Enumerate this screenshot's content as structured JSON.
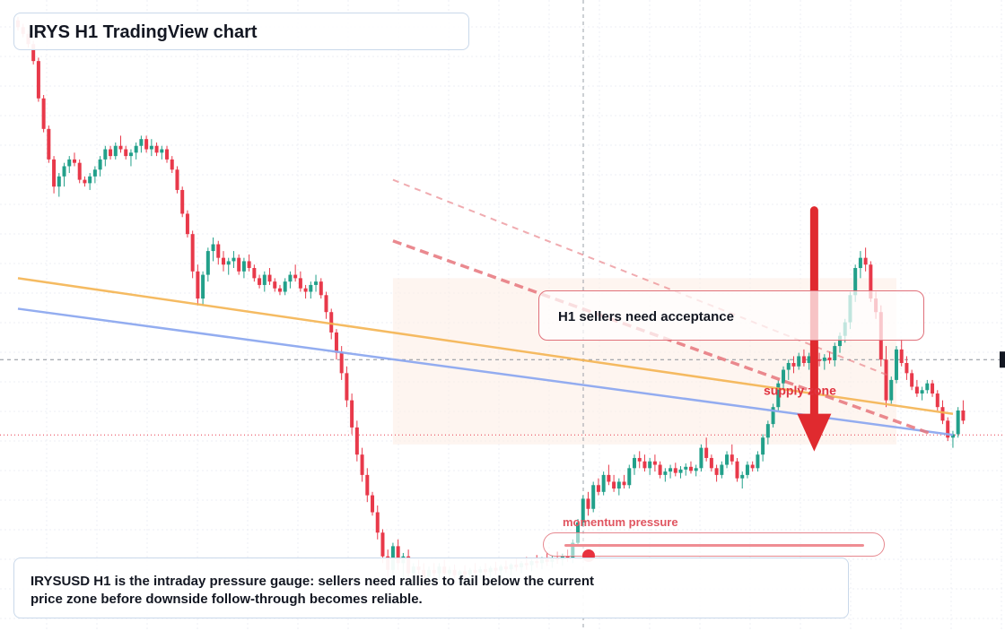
{
  "header": {
    "title": "IRYS H1 TradingView chart"
  },
  "callout": {
    "text": "H1 sellers need acceptance"
  },
  "zone": {
    "label": "supply zone"
  },
  "gauge": {
    "label": "momentum pressure",
    "level": 0.08
  },
  "summary": {
    "text": "IRYSUSD H1 is the intraday pressure gauge: sellers need rallies to fail below the current price zone before downside follow-through becomes reliable."
  },
  "colors": {
    "up": "#22a08a",
    "down": "#e8394a",
    "supply_zone_fill": "#fdece4",
    "orange_trendline": "#f5b452",
    "blue_trendline": "#8ea9f0",
    "red_dashed": "#e7757c",
    "arrow": "#e02a2f",
    "panel_border": "#c9d8ea"
  },
  "chart_data": {
    "type": "candlestick",
    "title": "IRYS H1 TradingView chart",
    "xlabel": "",
    "ylabel": "",
    "grid": true,
    "price_range": [
      0.1,
      1.0
    ],
    "candles": [
      [
        1.0,
        1.005,
        0.985,
        0.99
      ],
      [
        0.99,
        0.995,
        0.975,
        0.98
      ],
      [
        0.98,
        0.985,
        0.96,
        0.965
      ],
      [
        0.965,
        0.97,
        0.935,
        0.94
      ],
      [
        0.94,
        0.945,
        0.88,
        0.885
      ],
      [
        0.885,
        0.89,
        0.835,
        0.84
      ],
      [
        0.84,
        0.845,
        0.79,
        0.795
      ],
      [
        0.795,
        0.8,
        0.745,
        0.755
      ],
      [
        0.755,
        0.775,
        0.74,
        0.77
      ],
      [
        0.77,
        0.79,
        0.755,
        0.785
      ],
      [
        0.785,
        0.8,
        0.775,
        0.795
      ],
      [
        0.795,
        0.805,
        0.785,
        0.79
      ],
      [
        0.79,
        0.795,
        0.76,
        0.765
      ],
      [
        0.765,
        0.77,
        0.755,
        0.76
      ],
      [
        0.76,
        0.775,
        0.75,
        0.77
      ],
      [
        0.77,
        0.785,
        0.76,
        0.78
      ],
      [
        0.78,
        0.8,
        0.77,
        0.795
      ],
      [
        0.795,
        0.815,
        0.785,
        0.81
      ],
      [
        0.81,
        0.815,
        0.795,
        0.8
      ],
      [
        0.8,
        0.82,
        0.795,
        0.815
      ],
      [
        0.815,
        0.83,
        0.805,
        0.81
      ],
      [
        0.81,
        0.815,
        0.795,
        0.8
      ],
      [
        0.8,
        0.81,
        0.785,
        0.805
      ],
      [
        0.805,
        0.82,
        0.795,
        0.815
      ],
      [
        0.815,
        0.83,
        0.805,
        0.825
      ],
      [
        0.825,
        0.83,
        0.805,
        0.81
      ],
      [
        0.81,
        0.825,
        0.8,
        0.815
      ],
      [
        0.815,
        0.82,
        0.8,
        0.805
      ],
      [
        0.805,
        0.815,
        0.795,
        0.81
      ],
      [
        0.81,
        0.815,
        0.79,
        0.795
      ],
      [
        0.795,
        0.8,
        0.775,
        0.78
      ],
      [
        0.78,
        0.785,
        0.745,
        0.75
      ],
      [
        0.75,
        0.755,
        0.71,
        0.715
      ],
      [
        0.715,
        0.72,
        0.68,
        0.685
      ],
      [
        0.685,
        0.69,
        0.62,
        0.63
      ],
      [
        0.63,
        0.64,
        0.58,
        0.59
      ],
      [
        0.59,
        0.63,
        0.58,
        0.625
      ],
      [
        0.625,
        0.665,
        0.615,
        0.66
      ],
      [
        0.66,
        0.68,
        0.645,
        0.67
      ],
      [
        0.67,
        0.675,
        0.64,
        0.65
      ],
      [
        0.65,
        0.66,
        0.63,
        0.64
      ],
      [
        0.64,
        0.65,
        0.625,
        0.645
      ],
      [
        0.645,
        0.66,
        0.635,
        0.65
      ],
      [
        0.65,
        0.655,
        0.625,
        0.63
      ],
      [
        0.63,
        0.65,
        0.62,
        0.645
      ],
      [
        0.645,
        0.655,
        0.63,
        0.635
      ],
      [
        0.635,
        0.64,
        0.615,
        0.62
      ],
      [
        0.62,
        0.625,
        0.605,
        0.61
      ],
      [
        0.61,
        0.63,
        0.6,
        0.625
      ],
      [
        0.625,
        0.635,
        0.61,
        0.615
      ],
      [
        0.615,
        0.62,
        0.6,
        0.605
      ],
      [
        0.605,
        0.61,
        0.595,
        0.6
      ],
      [
        0.6,
        0.62,
        0.595,
        0.615
      ],
      [
        0.615,
        0.63,
        0.605,
        0.625
      ],
      [
        0.625,
        0.64,
        0.615,
        0.62
      ],
      [
        0.62,
        0.63,
        0.6,
        0.605
      ],
      [
        0.605,
        0.61,
        0.59,
        0.6
      ],
      [
        0.6,
        0.615,
        0.59,
        0.61
      ],
      [
        0.61,
        0.625,
        0.6,
        0.615
      ],
      [
        0.615,
        0.62,
        0.59,
        0.595
      ],
      [
        0.595,
        0.6,
        0.56,
        0.57
      ],
      [
        0.57,
        0.575,
        0.53,
        0.54
      ],
      [
        0.54,
        0.545,
        0.5,
        0.51
      ],
      [
        0.51,
        0.52,
        0.47,
        0.48
      ],
      [
        0.48,
        0.49,
        0.43,
        0.44
      ],
      [
        0.44,
        0.45,
        0.39,
        0.4
      ],
      [
        0.4,
        0.41,
        0.35,
        0.36
      ],
      [
        0.36,
        0.37,
        0.32,
        0.33
      ],
      [
        0.33,
        0.34,
        0.29,
        0.3
      ],
      [
        0.3,
        0.305,
        0.27,
        0.275
      ],
      [
        0.275,
        0.285,
        0.235,
        0.245
      ],
      [
        0.245,
        0.25,
        0.2,
        0.21
      ],
      [
        0.21,
        0.22,
        0.18,
        0.19
      ],
      [
        0.19,
        0.23,
        0.18,
        0.225
      ],
      [
        0.225,
        0.235,
        0.19,
        0.2
      ],
      [
        0.2,
        0.215,
        0.175,
        0.21
      ],
      [
        0.21,
        0.22,
        0.18,
        0.185
      ],
      [
        0.185,
        0.2,
        0.17,
        0.195
      ],
      [
        0.195,
        0.205,
        0.18,
        0.19
      ],
      [
        0.19,
        0.2,
        0.175,
        0.18
      ],
      [
        0.18,
        0.195,
        0.17,
        0.19
      ],
      [
        0.19,
        0.2,
        0.18,
        0.185
      ],
      [
        0.185,
        0.2,
        0.175,
        0.195
      ],
      [
        0.195,
        0.205,
        0.18,
        0.185
      ],
      [
        0.185,
        0.195,
        0.175,
        0.19
      ],
      [
        0.19,
        0.198,
        0.178,
        0.182
      ],
      [
        0.182,
        0.19,
        0.17,
        0.188
      ],
      [
        0.188,
        0.197,
        0.177,
        0.183
      ],
      [
        0.183,
        0.193,
        0.172,
        0.19
      ],
      [
        0.19,
        0.2,
        0.18,
        0.186
      ],
      [
        0.186,
        0.195,
        0.176,
        0.191
      ],
      [
        0.191,
        0.2,
        0.182,
        0.187
      ],
      [
        0.187,
        0.196,
        0.178,
        0.193
      ],
      [
        0.193,
        0.202,
        0.183,
        0.189
      ],
      [
        0.189,
        0.198,
        0.179,
        0.195
      ],
      [
        0.195,
        0.204,
        0.186,
        0.191
      ],
      [
        0.191,
        0.2,
        0.182,
        0.198
      ],
      [
        0.198,
        0.207,
        0.188,
        0.194
      ],
      [
        0.194,
        0.203,
        0.185,
        0.2
      ],
      [
        0.2,
        0.209,
        0.19,
        0.197
      ],
      [
        0.197,
        0.206,
        0.188,
        0.203
      ],
      [
        0.203,
        0.212,
        0.193,
        0.2
      ],
      [
        0.2,
        0.209,
        0.191,
        0.206
      ],
      [
        0.206,
        0.215,
        0.196,
        0.202
      ],
      [
        0.202,
        0.211,
        0.193,
        0.208
      ],
      [
        0.208,
        0.217,
        0.199,
        0.205
      ],
      [
        0.205,
        0.214,
        0.196,
        0.211
      ],
      [
        0.211,
        0.22,
        0.202,
        0.208
      ],
      [
        0.208,
        0.235,
        0.2,
        0.23
      ],
      [
        0.23,
        0.265,
        0.225,
        0.26
      ],
      [
        0.26,
        0.3,
        0.255,
        0.295
      ],
      [
        0.295,
        0.305,
        0.27,
        0.28
      ],
      [
        0.28,
        0.32,
        0.275,
        0.315
      ],
      [
        0.315,
        0.325,
        0.3,
        0.305
      ],
      [
        0.305,
        0.335,
        0.3,
        0.33
      ],
      [
        0.33,
        0.345,
        0.315,
        0.32
      ],
      [
        0.32,
        0.33,
        0.305,
        0.31
      ],
      [
        0.31,
        0.325,
        0.3,
        0.32
      ],
      [
        0.32,
        0.33,
        0.31,
        0.315
      ],
      [
        0.315,
        0.345,
        0.31,
        0.34
      ],
      [
        0.34,
        0.36,
        0.33,
        0.355
      ],
      [
        0.355,
        0.365,
        0.34,
        0.35
      ],
      [
        0.35,
        0.36,
        0.335,
        0.34
      ],
      [
        0.34,
        0.355,
        0.33,
        0.35
      ],
      [
        0.35,
        0.36,
        0.335,
        0.345
      ],
      [
        0.345,
        0.35,
        0.325,
        0.33
      ],
      [
        0.33,
        0.34,
        0.32,
        0.335
      ],
      [
        0.335,
        0.345,
        0.325,
        0.34
      ],
      [
        0.34,
        0.348,
        0.328,
        0.333
      ],
      [
        0.333,
        0.343,
        0.325,
        0.338
      ],
      [
        0.338,
        0.347,
        0.329,
        0.342
      ],
      [
        0.342,
        0.35,
        0.332,
        0.336
      ],
      [
        0.336,
        0.345,
        0.328,
        0.34
      ],
      [
        0.34,
        0.375,
        0.335,
        0.37
      ],
      [
        0.37,
        0.385,
        0.35,
        0.355
      ],
      [
        0.355,
        0.36,
        0.335,
        0.34
      ],
      [
        0.34,
        0.345,
        0.32,
        0.33
      ],
      [
        0.33,
        0.35,
        0.325,
        0.345
      ],
      [
        0.345,
        0.365,
        0.34,
        0.36
      ],
      [
        0.36,
        0.375,
        0.345,
        0.35
      ],
      [
        0.35,
        0.355,
        0.32,
        0.325
      ],
      [
        0.325,
        0.335,
        0.31,
        0.33
      ],
      [
        0.33,
        0.35,
        0.325,
        0.345
      ],
      [
        0.345,
        0.35,
        0.335,
        0.34
      ],
      [
        0.34,
        0.365,
        0.335,
        0.36
      ],
      [
        0.36,
        0.39,
        0.35,
        0.385
      ],
      [
        0.385,
        0.41,
        0.375,
        0.405
      ],
      [
        0.405,
        0.435,
        0.4,
        0.43
      ],
      [
        0.43,
        0.47,
        0.425,
        0.465
      ],
      [
        0.465,
        0.49,
        0.455,
        0.485
      ],
      [
        0.485,
        0.5,
        0.47,
        0.495
      ],
      [
        0.495,
        0.505,
        0.48,
        0.49
      ],
      [
        0.49,
        0.51,
        0.485,
        0.505
      ],
      [
        0.505,
        0.515,
        0.49,
        0.495
      ],
      [
        0.495,
        0.51,
        0.485,
        0.505
      ],
      [
        0.505,
        0.512,
        0.495,
        0.5
      ],
      [
        0.5,
        0.51,
        0.49,
        0.498
      ],
      [
        0.498,
        0.508,
        0.485,
        0.503
      ],
      [
        0.503,
        0.512,
        0.494,
        0.499
      ],
      [
        0.499,
        0.525,
        0.49,
        0.52
      ],
      [
        0.52,
        0.54,
        0.51,
        0.535
      ],
      [
        0.535,
        0.56,
        0.525,
        0.555
      ],
      [
        0.555,
        0.6,
        0.545,
        0.595
      ],
      [
        0.595,
        0.64,
        0.585,
        0.635
      ],
      [
        0.635,
        0.66,
        0.62,
        0.65
      ],
      [
        0.65,
        0.665,
        0.63,
        0.64
      ],
      [
        0.64,
        0.645,
        0.585,
        0.59
      ],
      [
        0.59,
        0.6,
        0.56,
        0.57
      ],
      [
        0.57,
        0.58,
        0.49,
        0.5
      ],
      [
        0.5,
        0.52,
        0.43,
        0.44
      ],
      [
        0.44,
        0.475,
        0.435,
        0.47
      ],
      [
        0.47,
        0.52,
        0.465,
        0.515
      ],
      [
        0.515,
        0.53,
        0.49,
        0.495
      ],
      [
        0.495,
        0.505,
        0.47,
        0.48
      ],
      [
        0.48,
        0.485,
        0.455,
        0.46
      ],
      [
        0.46,
        0.47,
        0.445,
        0.45
      ],
      [
        0.45,
        0.46,
        0.44,
        0.455
      ],
      [
        0.455,
        0.47,
        0.45,
        0.465
      ],
      [
        0.465,
        0.47,
        0.445,
        0.45
      ],
      [
        0.45,
        0.455,
        0.425,
        0.43
      ],
      [
        0.43,
        0.44,
        0.405,
        0.41
      ],
      [
        0.41,
        0.415,
        0.38,
        0.385
      ],
      [
        0.385,
        0.395,
        0.37,
        0.39
      ],
      [
        0.39,
        0.43,
        0.385,
        0.425
      ],
      [
        0.425,
        0.44,
        0.405,
        0.41
      ]
    ],
    "annotations": {
      "orange_trendline": [
        [
          0,
          0.62
        ],
        [
          182,
          0.42
        ]
      ],
      "blue_trendline": [
        [
          0,
          0.575
        ],
        [
          182,
          0.389
        ]
      ],
      "red_dashed_upper": [
        [
          73,
          0.765
        ],
        [
          170,
          0.475
        ]
      ],
      "red_dashed_lower": [
        [
          73,
          0.675
        ],
        [
          178,
          0.39
        ]
      ],
      "supply_zone": {
        "from_index": 73,
        "to_index": 171,
        "low": 0.375,
        "high": 0.62
      },
      "horizontal_crosshair_price": 0.5,
      "dotted_price_line": 0.389,
      "down_arrow": {
        "index": 155,
        "from": 0.72,
        "to": 0.37
      }
    }
  }
}
